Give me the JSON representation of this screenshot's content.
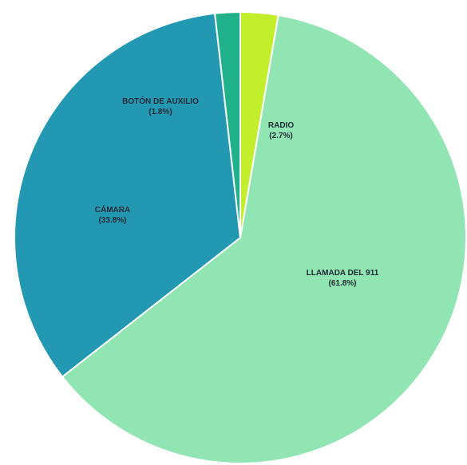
{
  "chart_data": {
    "type": "pie",
    "title": "",
    "slices": [
      {
        "label": "RADIO",
        "percent_label": "(2.7%)",
        "value": 2.7,
        "color": "#c2ee2c"
      },
      {
        "label": "LLAMADA DEL 911",
        "percent_label": "(61.8%)",
        "value": 61.8,
        "color": "#90e5b3"
      },
      {
        "label": "CÁMARA",
        "percent_label": "(33.8%)",
        "value": 33.8,
        "color": "#2298b3"
      },
      {
        "label": "BOTÓN DE AUXILIO",
        "percent_label": "(1.8%)",
        "value": 1.8,
        "color": "#1fb18a"
      }
    ],
    "start_angle": "12 o'clock",
    "direction": "clockwise",
    "legend": "none",
    "slice_border_color": "#ffffff"
  }
}
